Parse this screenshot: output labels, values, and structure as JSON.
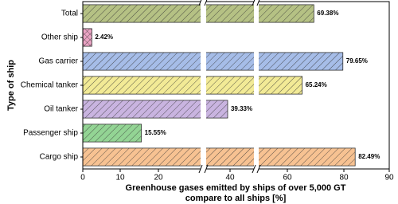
{
  "chart_data": {
    "type": "bar",
    "orientation": "horizontal",
    "ylabel": "Type of ship",
    "xlabel": [
      "Greenhouse gases emitted by ships of over 5,000 GT",
      "compare to all ships [%]"
    ],
    "categories": [
      "Total",
      "Other ship",
      "Gas carrier",
      "Chemical tanker",
      "Oil tanker",
      "Passenger ship",
      "Cargo ship"
    ],
    "values": [
      69.38,
      2.42,
      79.65,
      65.24,
      39.33,
      15.55,
      82.49
    ],
    "value_labels": [
      "69.38%",
      "2.42%",
      "79.65%",
      "65.24%",
      "39.33%",
      "15.55%",
      "82.49%"
    ],
    "colors": [
      "#b5c184",
      "#eba3c4",
      "#a6bde8",
      "#f2ea96",
      "#c9b4e0",
      "#93d494",
      "#f7c292"
    ],
    "xlim": [
      0,
      90
    ],
    "xticks": [
      0,
      10,
      20,
      40,
      60,
      80,
      90
    ],
    "axis_break": true
  }
}
